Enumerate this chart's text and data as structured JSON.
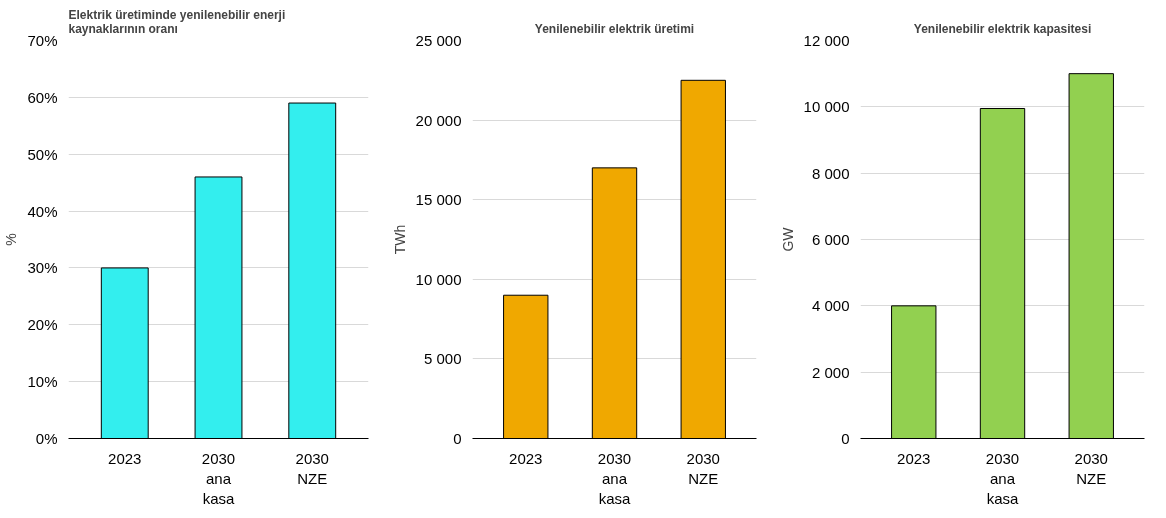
{
  "chart_data": [
    {
      "type": "bar",
      "title": "Elektrik üretiminde yenilenebilir enerji kaynaklarının oranı",
      "ylabel": "%",
      "categories": [
        "2023",
        "2030 ana kasa",
        "2030 NZE"
      ],
      "values": [
        30,
        46,
        59
      ],
      "color": "#33eeee",
      "ylim": [
        0,
        70
      ],
      "yticks": [
        {
          "value": 0,
          "label": "0%"
        },
        {
          "value": 10,
          "label": "10%"
        },
        {
          "value": 20,
          "label": "20%"
        },
        {
          "value": 30,
          "label": "30%"
        },
        {
          "value": 40,
          "label": "40%"
        },
        {
          "value": 50,
          "label": "50%"
        },
        {
          "value": 60,
          "label": "60%"
        },
        {
          "value": 70,
          "label": "70%"
        }
      ],
      "grid": "y",
      "legend": false
    },
    {
      "type": "bar",
      "title": "Yenilenebilir elektrik üretimi",
      "ylabel": "TWh",
      "categories": [
        "2023",
        "2030 ana kasa",
        "2030 NZE"
      ],
      "values": [
        9000,
        17000,
        22500
      ],
      "color": "#f0a800",
      "ylim": [
        0,
        25000
      ],
      "yticks": [
        {
          "value": 0,
          "label": "0"
        },
        {
          "value": 5000,
          "label": "5 000"
        },
        {
          "value": 10000,
          "label": "10 000"
        },
        {
          "value": 15000,
          "label": "15 000"
        },
        {
          "value": 20000,
          "label": "20 000"
        },
        {
          "value": 25000,
          "label": "25 000"
        }
      ],
      "grid": "y",
      "legend": false
    },
    {
      "type": "bar",
      "title": "Yenilenebilir elektrik kapasitesi",
      "ylabel": "GW",
      "categories": [
        "2023",
        "2030 ana kasa",
        "2030 NZE"
      ],
      "values": [
        4000,
        9950,
        11000
      ],
      "color": "#92d050",
      "ylim": [
        0,
        12000
      ],
      "yticks": [
        {
          "value": 0,
          "label": "0"
        },
        {
          "value": 2000,
          "label": "2 000"
        },
        {
          "value": 4000,
          "label": "4 000"
        },
        {
          "value": 6000,
          "label": "6 000"
        },
        {
          "value": 8000,
          "label": "8 000"
        },
        {
          "value": 10000,
          "label": "10 000"
        },
        {
          "value": 12000,
          "label": "12 000"
        }
      ],
      "grid": "y",
      "legend": false
    }
  ]
}
